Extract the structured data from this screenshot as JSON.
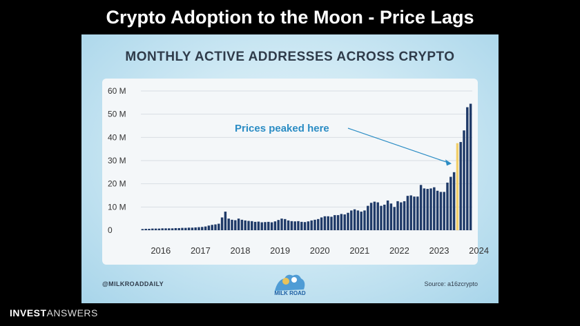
{
  "headline": "Crypto Adoption to the Moon - Price Lags",
  "brand": {
    "bold": "INVEST",
    "light": "ANSWERS"
  },
  "footer": {
    "left": "@MILKROADDAILY",
    "right": "Source: a16zcrypto"
  },
  "logo_text": "MILK ROAD",
  "colors": {
    "bar": "#1f3a68",
    "highlight": "#f2cf6a",
    "annotation": "#2a8cc4"
  },
  "chart_data": {
    "type": "bar",
    "title": "MONTHLY ACTIVE ADDRESSES ACROSS CRYPTO",
    "x_start": "2016-01",
    "x_ticks": [
      "2016",
      "2017",
      "2018",
      "2019",
      "2020",
      "2021",
      "2022",
      "2023",
      "2024"
    ],
    "y_ticks": [
      "0",
      "10 M",
      "20 M",
      "30 M",
      "40 M",
      "50 M",
      "60 M"
    ],
    "ylim": [
      0,
      60
    ],
    "yunit": "M",
    "values": [
      0.5,
      0.6,
      0.6,
      0.7,
      0.7,
      0.7,
      0.8,
      0.8,
      0.8,
      0.8,
      0.9,
      0.9,
      1.0,
      1.0,
      1.1,
      1.1,
      1.2,
      1.3,
      1.4,
      1.6,
      2.0,
      2.3,
      2.5,
      2.8,
      5.5,
      8.0,
      5.0,
      4.5,
      4.3,
      5.0,
      4.5,
      4.2,
      4.0,
      3.9,
      3.6,
      3.7,
      3.4,
      3.5,
      3.6,
      3.4,
      3.8,
      4.4,
      5.0,
      4.8,
      4.2,
      3.9,
      3.8,
      3.9,
      3.6,
      3.5,
      3.8,
      4.2,
      4.5,
      4.8,
      5.5,
      6.0,
      6.0,
      5.8,
      6.5,
      6.5,
      7.0,
      6.8,
      7.5,
      8.5,
      9.0,
      8.5,
      8.0,
      8.5,
      10.5,
      11.8,
      12.3,
      12.0,
      10.5,
      11.0,
      12.8,
      11.5,
      10.0,
      12.5,
      12.0,
      12.5,
      14.8,
      15.0,
      14.5,
      14.5,
      19.5,
      18.0,
      17.8,
      18.0,
      18.5,
      17.0,
      16.5,
      16.5,
      20.5,
      23.0,
      25.0,
      37.5,
      38.0,
      43.0,
      53.0,
      54.5
    ],
    "highlight_index": 95,
    "annotation": "Prices peaked here"
  }
}
